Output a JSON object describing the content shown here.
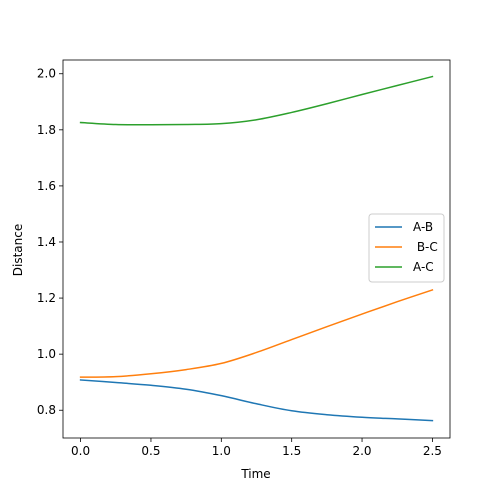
{
  "chart_data": {
    "type": "line",
    "title": "",
    "xlabel": "Time",
    "ylabel": "Distance",
    "xlim": [
      -0.125,
      2.625
    ],
    "ylim": [
      0.701,
      2.049
    ],
    "xticks": [
      0.0,
      0.5,
      1.0,
      1.5,
      2.0,
      2.5
    ],
    "xtick_labels": [
      "0.0",
      "0.5",
      "1.0",
      "1.5",
      "2.0",
      "2.5"
    ],
    "yticks": [
      0.8,
      1.0,
      1.2,
      1.4,
      1.6,
      1.8,
      2.0
    ],
    "ytick_labels": [
      "0.8",
      "1.0",
      "1.2",
      "1.4",
      "1.6",
      "1.8",
      "2.0"
    ],
    "grid": false,
    "legend_position": "center-right",
    "x": [
      0.0,
      0.25,
      0.5,
      0.75,
      1.0,
      1.25,
      1.5,
      1.75,
      2.0,
      2.25,
      2.5
    ],
    "series": [
      {
        "name": "A-B",
        "color": "#1f77b4",
        "values": [
          0.908,
          0.899,
          0.889,
          0.875,
          0.852,
          0.823,
          0.798,
          0.784,
          0.775,
          0.769,
          0.763
        ]
      },
      {
        "name": " B-C",
        "color": "#ff7f0e",
        "values": [
          0.918,
          0.92,
          0.93,
          0.945,
          0.967,
          1.006,
          1.052,
          1.098,
          1.143,
          1.187,
          1.229
        ]
      },
      {
        "name": "A-C",
        "color": "#2ca02c",
        "values": [
          1.826,
          1.819,
          1.818,
          1.819,
          1.822,
          1.836,
          1.862,
          1.893,
          1.926,
          1.958,
          1.99
        ]
      }
    ]
  }
}
